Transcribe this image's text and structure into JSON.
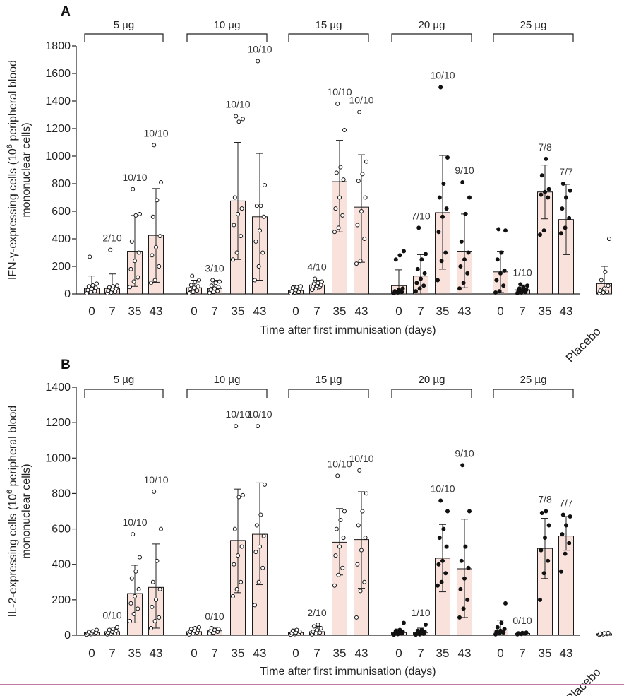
{
  "colors": {
    "bar_fill": "#f9e1dc",
    "bar_stroke": "#1a1a1a",
    "rule": "#c07aa6"
  },
  "chart_data": [
    {
      "type": "bar",
      "panel": "A",
      "ylabel_line1": "IFN-γ-expressing cells (10",
      "ylabel_sup": "6",
      "ylabel_rest": " peripheral blood",
      "ylabel_line2": "mononuclear cells)",
      "xlabel": "Time after first immunisation (days)",
      "ylim": [
        0,
        1800
      ],
      "yticks": [
        "0",
        "200",
        "400",
        "600",
        "800",
        "1000",
        "1200",
        "1400",
        "1600",
        "1800"
      ],
      "groups": [
        {
          "label": "5 µg",
          "marker": "open",
          "bars": [
            {
              "day": "0",
              "value": 40,
              "err": [
                0,
                130
              ],
              "ann": "",
              "points": [
                5,
                12,
                20,
                28,
                38,
                45,
                55,
                62,
                75,
                270
              ]
            },
            {
              "day": "7",
              "value": 40,
              "err": [
                0,
                145
              ],
              "ann": "2/10",
              "points": [
                5,
                10,
                18,
                25,
                32,
                40,
                48,
                55,
                60,
                320
              ]
            },
            {
              "day": "35",
              "value": 310,
              "err": [
                55,
                570
              ],
              "ann": "10/10",
              "points": [
                50,
                90,
                120,
                180,
                240,
                300,
                380,
                570,
                580,
                760
              ]
            },
            {
              "day": "43",
              "value": 425,
              "err": [
                85,
                765
              ],
              "ann": "10/10",
              "points": [
                80,
                100,
                200,
                280,
                340,
                420,
                560,
                680,
                810,
                1080
              ]
            }
          ]
        },
        {
          "label": "10 µg",
          "marker": "open",
          "bars": [
            {
              "day": "0",
              "value": 45,
              "err": [
                0,
                100
              ],
              "ann": "",
              "points": [
                5,
                15,
                25,
                35,
                45,
                55,
                65,
                85,
                100,
                130
              ]
            },
            {
              "day": "7",
              "value": 40,
              "err": [
                0,
                100
              ],
              "ann": "3/10",
              "points": [
                8,
                15,
                22,
                30,
                40,
                50,
                60,
                80,
                90,
                100
              ]
            },
            {
              "day": "35",
              "value": 675,
              "err": [
                250,
                1100
              ],
              "ann": "10/10",
              "points": [
                250,
                300,
                420,
                500,
                580,
                620,
                700,
                1250,
                1270,
                1290
              ]
            },
            {
              "day": "43",
              "value": 560,
              "err": [
                100,
                1020
              ],
              "ann": "10/10",
              "points": [
                100,
                200,
                300,
                380,
                460,
                560,
                640,
                640,
                790,
                1690
              ]
            }
          ]
        },
        {
          "label": "15 µg",
          "marker": "open",
          "bars": [
            {
              "day": "0",
              "value": 25,
              "err": [
                0,
                60
              ],
              "ann": "",
              "points": [
                5,
                10,
                15,
                20,
                28,
                35,
                45,
                50,
                55
              ]
            },
            {
              "day": "7",
              "value": 65,
              "err": [
                30,
                100
              ],
              "ann": "4/10",
              "points": [
                30,
                40,
                50,
                55,
                60,
                65,
                75,
                80,
                90,
                110
              ]
            },
            {
              "day": "35",
              "value": 815,
              "err": [
                450,
                1115
              ],
              "ann": "10/10",
              "points": [
                450,
                480,
                570,
                620,
                700,
                830,
                880,
                920,
                1190,
                1380
              ]
            },
            {
              "day": "43",
              "value": 630,
              "err": [
                230,
                1010
              ],
              "ann": "10/10",
              "points": [
                220,
                240,
                400,
                500,
                600,
                700,
                820,
                870,
                960,
                1320
              ]
            }
          ]
        },
        {
          "label": "20 µg",
          "marker": "filled",
          "bars": [
            {
              "day": "0",
              "value": 60,
              "err": [
                0,
                175
              ],
              "ann": "",
              "points": [
                5,
                10,
                15,
                20,
                30,
                40,
                250,
                280,
                310
              ]
            },
            {
              "day": "7",
              "value": 130,
              "err": [
                0,
                285
              ],
              "ann": "7/10",
              "points": [
                20,
                40,
                60,
                80,
                110,
                150,
                180,
                250,
                290,
                480
              ]
            },
            {
              "day": "35",
              "value": 590,
              "err": [
                180,
                1005
              ],
              "ann": "10/10",
              "points": [
                100,
                240,
                300,
                450,
                560,
                620,
                700,
                800,
                990,
                1500
              ]
            },
            {
              "day": "43",
              "value": 310,
              "err": [
                45,
                580
              ],
              "ann": "9/10",
              "points": [
                40,
                80,
                150,
                200,
                250,
                300,
                380,
                580,
                700,
                810
              ]
            }
          ]
        },
        {
          "label": "25 µg",
          "marker": "filled",
          "bars": [
            {
              "day": "0",
              "value": 160,
              "err": [
                10,
                310
              ],
              "ann": "",
              "points": [
                10,
                20,
                60,
                100,
                150,
                170,
                250,
                300,
                460,
                470
              ]
            },
            {
              "day": "7",
              "value": 30,
              "err": [
                0,
                65
              ],
              "ann": "1/10",
              "points": [
                5,
                10,
                15,
                20,
                25,
                30,
                40,
                50,
                60,
                70
              ]
            },
            {
              "day": "35",
              "value": 740,
              "err": [
                545,
                935
              ],
              "ann": "7/8",
              "points": [
                430,
                460,
                700,
                720,
                740,
                760,
                860,
                980
              ]
            },
            {
              "day": "43",
              "value": 540,
              "err": [
                285,
                795
              ],
              "ann": "7/7",
              "points": [
                440,
                480,
                550,
                620,
                700,
                750,
                800
              ]
            }
          ]
        }
      ],
      "placebo": {
        "label": "Placebo",
        "value": 75,
        "err": [
          0,
          200
        ],
        "points": [
          5,
          10,
          15,
          25,
          40,
          60,
          100,
          160,
          400
        ]
      }
    },
    {
      "type": "bar",
      "panel": "B",
      "ylabel_line1": "IL-2-expressing cells (10",
      "ylabel_sup": "6",
      "ylabel_rest": " peripheral blood",
      "ylabel_line2": "mononuclear cells)",
      "xlabel": "Time after first immunisation (days)",
      "ylim": [
        0,
        1400
      ],
      "yticks": [
        "0",
        "200",
        "400",
        "600",
        "800",
        "1000",
        "1200",
        "1400"
      ],
      "groups": [
        {
          "label": "5 µg",
          "marker": "open",
          "bars": [
            {
              "day": "0",
              "value": 15,
              "err": [
                0,
                30
              ],
              "ann": "",
              "points": [
                3,
                6,
                8,
                10,
                12,
                15,
                18,
                22,
                30
              ]
            },
            {
              "day": "7",
              "value": 20,
              "err": [
                0,
                45
              ],
              "ann": "0/10",
              "points": [
                5,
                8,
                12,
                15,
                20,
                25,
                30,
                35,
                45
              ]
            },
            {
              "day": "35",
              "value": 235,
              "err": [
                70,
                395
              ],
              "ann": "10/10",
              "points": [
                80,
                120,
                150,
                180,
                220,
                260,
                320,
                360,
                440,
                570
              ]
            },
            {
              "day": "43",
              "value": 270,
              "err": [
                40,
                515
              ],
              "ann": "10/10",
              "points": [
                40,
                80,
                100,
                160,
                200,
                260,
                300,
                420,
                600,
                810
              ]
            }
          ]
        },
        {
          "label": "10 µg",
          "marker": "open",
          "bars": [
            {
              "day": "0",
              "value": 20,
              "err": [
                0,
                45
              ],
              "ann": "",
              "points": [
                5,
                10,
                15,
                20,
                25,
                30,
                35,
                40,
                45
              ]
            },
            {
              "day": "7",
              "value": 25,
              "err": [
                0,
                40
              ],
              "ann": "0/10",
              "points": [
                10,
                15,
                20,
                25,
                30,
                35,
                40
              ]
            },
            {
              "day": "35",
              "value": 535,
              "err": [
                240,
                825
              ],
              "ann": "10/10",
              "points": [
                220,
                260,
                300,
                400,
                450,
                500,
                600,
                780,
                790,
                1180
              ]
            },
            {
              "day": "43",
              "value": 570,
              "err": [
                285,
                860
              ],
              "ann": "10/10",
              "points": [
                170,
                300,
                380,
                470,
                500,
                560,
                620,
                680,
                850,
                1180
              ]
            }
          ]
        },
        {
          "label": "15 µg",
          "marker": "open",
          "bars": [
            {
              "day": "0",
              "value": 15,
              "err": [
                0,
                35
              ],
              "ann": "",
              "points": [
                3,
                6,
                9,
                12,
                15,
                20,
                25,
                30
              ]
            },
            {
              "day": "7",
              "value": 20,
              "err": [
                0,
                50
              ],
              "ann": "2/10",
              "points": [
                5,
                10,
                15,
                20,
                30,
                40,
                50,
                60
              ]
            },
            {
              "day": "35",
              "value": 525,
              "err": [
                340,
                715
              ],
              "ann": "10/10",
              "points": [
                280,
                340,
                380,
                450,
                500,
                550,
                600,
                650,
                700,
                900
              ]
            },
            {
              "day": "43",
              "value": 540,
              "err": [
                265,
                810
              ],
              "ann": "10/10",
              "points": [
                100,
                250,
                300,
                400,
                480,
                550,
                620,
                700,
                800,
                930
              ]
            }
          ]
        },
        {
          "label": "20 µg",
          "marker": "filled",
          "bars": [
            {
              "day": "0",
              "value": 15,
              "err": [
                0,
                35
              ],
              "ann": "",
              "points": [
                3,
                6,
                9,
                12,
                15,
                20,
                25,
                30,
                70
              ]
            },
            {
              "day": "7",
              "value": 15,
              "err": [
                0,
                40
              ],
              "ann": "1/10",
              "points": [
                3,
                5,
                8,
                10,
                15,
                20,
                25,
                30,
                60
              ]
            },
            {
              "day": "35",
              "value": 435,
              "err": [
                245,
                625
              ],
              "ann": "10/10",
              "points": [
                280,
                300,
                350,
                400,
                420,
                500,
                550,
                600,
                700,
                760
              ]
            },
            {
              "day": "43",
              "value": 375,
              "err": [
                100,
                655
              ],
              "ann": "9/10",
              "points": [
                100,
                150,
                200,
                260,
                320,
                380,
                420,
                500,
                700,
                960
              ]
            }
          ]
        },
        {
          "label": "25 µg",
          "marker": "filled",
          "bars": [
            {
              "day": "0",
              "value": 30,
              "err": [
                0,
                85
              ],
              "ann": "",
              "points": [
                5,
                10,
                15,
                20,
                25,
                35,
                45,
                70,
                180
              ]
            },
            {
              "day": "7",
              "value": 10,
              "err": [
                0,
                15
              ],
              "ann": "0/10",
              "points": [
                5,
                7,
                9,
                11,
                13,
                15
              ]
            },
            {
              "day": "35",
              "value": 490,
              "err": [
                320,
                660
              ],
              "ann": "7/8",
              "points": [
                200,
                350,
                420,
                480,
                550,
                620,
                690,
                700
              ]
            },
            {
              "day": "43",
              "value": 560,
              "err": [
                480,
                670
              ],
              "ann": "7/7",
              "points": [
                360,
                460,
                520,
                570,
                620,
                670,
                680
              ]
            }
          ]
        }
      ],
      "placebo": {
        "label": "Placebo",
        "value": 8,
        "err": [
          0,
          0
        ],
        "points": [
          3,
          5,
          7,
          9,
          11,
          13
        ]
      }
    }
  ]
}
